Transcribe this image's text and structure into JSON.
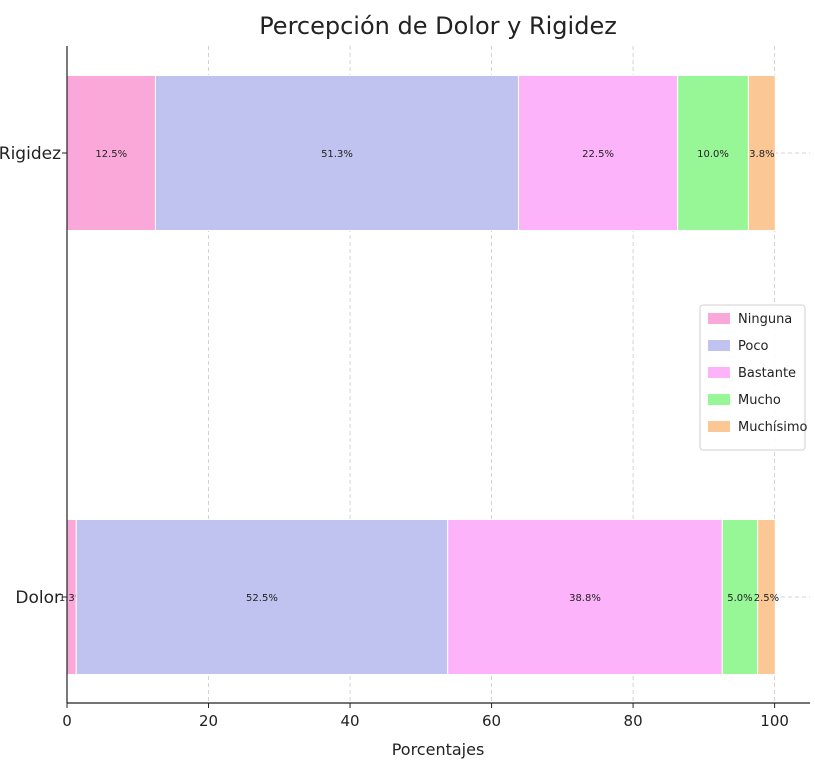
{
  "chart_data": {
    "type": "bar",
    "orientation": "horizontal",
    "stacked": true,
    "title": "Percepción de Dolor y Rigidez",
    "xlabel": "Porcentajes",
    "ylabel": "",
    "xlim": [
      0,
      105
    ],
    "xticks": [
      0,
      20,
      40,
      60,
      80,
      100
    ],
    "categories": [
      "Dolor",
      "Rigidez"
    ],
    "grid": true,
    "legend_position": "center-right",
    "series": [
      {
        "name": "Ninguna",
        "color": "#f9a8d9",
        "values": [
          1.3,
          12.5
        ],
        "labels": [
          "1.3%",
          "12.5%"
        ]
      },
      {
        "name": "Poco",
        "color": "#c0c2ef",
        "values": [
          52.5,
          51.3
        ],
        "labels": [
          "52.5%",
          "51.3%"
        ]
      },
      {
        "name": "Bastante",
        "color": "#fcb3fa",
        "values": [
          38.8,
          22.5
        ],
        "labels": [
          "38.8%",
          "22.5%"
        ]
      },
      {
        "name": "Mucho",
        "color": "#97f797",
        "values": [
          5.0,
          10.0
        ],
        "labels": [
          "5.0%",
          "10.0%"
        ]
      },
      {
        "name": "Muchísimo",
        "color": "#fbc895",
        "values": [
          2.5,
          3.8
        ],
        "labels": [
          "2.5%",
          "3.8%"
        ]
      }
    ]
  }
}
